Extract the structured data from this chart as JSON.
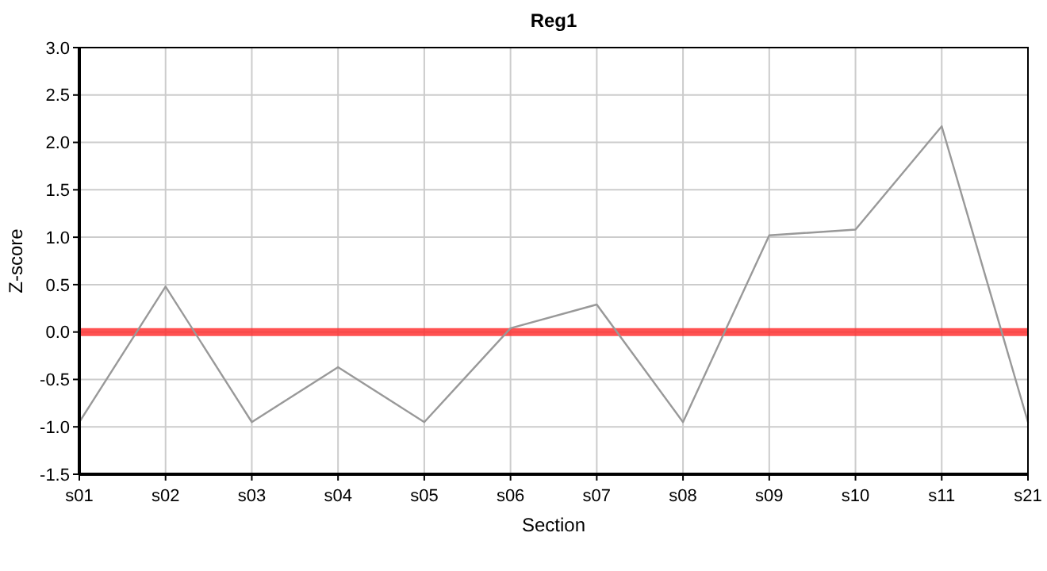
{
  "chart_data": {
    "type": "line",
    "title": "Reg1",
    "xlabel": "Section",
    "ylabel": "Z-score",
    "categories": [
      "s01",
      "s02",
      "s03",
      "s04",
      "s05",
      "s06",
      "s07",
      "s08",
      "s09",
      "s10",
      "s11",
      "s21"
    ],
    "series": [
      {
        "color": "#999999",
        "values": [
          -0.95,
          0.48,
          -0.95,
          -0.37,
          -0.95,
          0.04,
          0.29,
          -0.95,
          1.02,
          1.08,
          2.17,
          -0.95
        ]
      }
    ],
    "ylim": [
      -1.5,
      3.0
    ],
    "yticks": [
      {
        "value": -1.5,
        "label": "-1.5"
      },
      {
        "value": -1,
        "label": "-1.0"
      },
      {
        "value": -0.5,
        "label": "-0.5"
      },
      {
        "value": 0,
        "label": "0.0"
      },
      {
        "value": 0.5,
        "label": "0.5"
      },
      {
        "value": 1,
        "label": "1.0"
      },
      {
        "value": 1.5,
        "label": "1.5"
      },
      {
        "value": 2,
        "label": "2.0"
      },
      {
        "value": 2.5,
        "label": "2.5"
      },
      {
        "value": 3,
        "label": "3.0"
      }
    ],
    "ref_lines": [
      {
        "axis": "y",
        "value": 0,
        "color": "#ff3333"
      }
    ],
    "grid": true,
    "marker": "none",
    "line_style": "solid"
  }
}
